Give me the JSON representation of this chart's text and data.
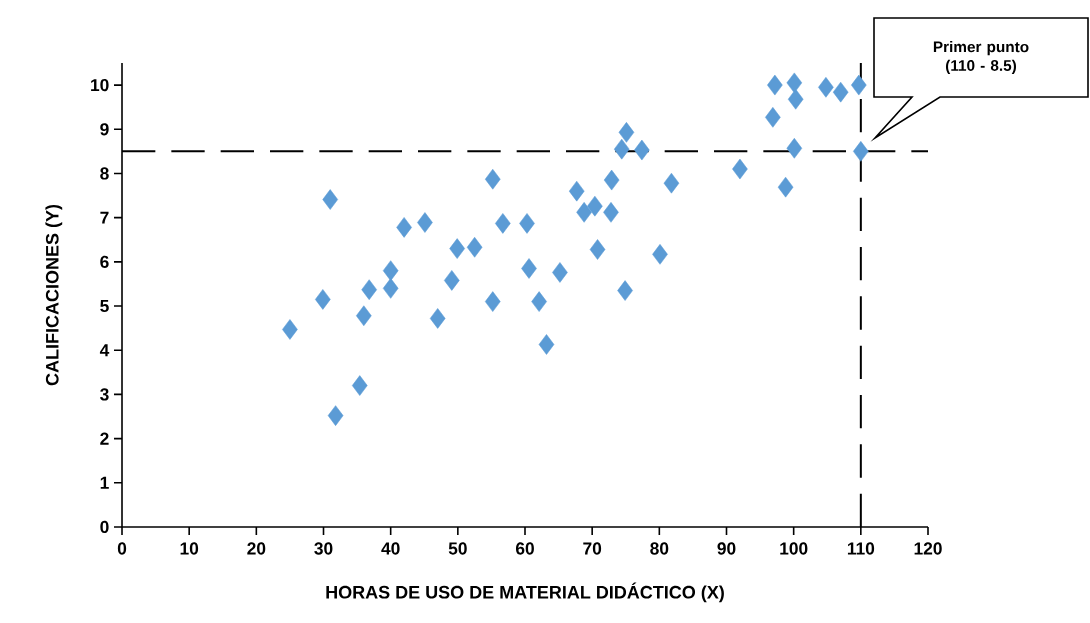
{
  "chart_data": {
    "type": "scatter",
    "xlabel": "HORAS DE USO DE MATERIAL DIDÁCTICO (X)",
    "ylabel": "CALIFICACIONES (Y)",
    "x": [
      25.0,
      29.9,
      31.0,
      31.8,
      35.4,
      36.0,
      36.8,
      40.0,
      40.0,
      42.0,
      45.1,
      47.0,
      49.1,
      49.9,
      52.5,
      55.2,
      55.2,
      56.7,
      60.3,
      60.6,
      62.1,
      63.2,
      65.2,
      67.7,
      68.8,
      70.4,
      70.8,
      72.8,
      72.9,
      74.4,
      75.1,
      74.9,
      77.4,
      80.1,
      81.8,
      92.0,
      96.9,
      97.2,
      98.8,
      100.1,
      100.3,
      100.1,
      104.8,
      107.0,
      109.7,
      110.0
    ],
    "series": [
      {
        "color": "#5b9bd5",
        "values": [
          4.47,
          5.15,
          7.41,
          2.52,
          3.2,
          4.78,
          5.37,
          5.8,
          5.4,
          6.78,
          6.89,
          4.72,
          5.58,
          6.3,
          6.33,
          7.87,
          5.1,
          6.87,
          6.87,
          5.85,
          5.1,
          4.13,
          5.76,
          7.6,
          7.12,
          7.26,
          6.28,
          7.12,
          7.85,
          8.55,
          8.93,
          5.35,
          8.53,
          6.17,
          7.78,
          8.1,
          9.27,
          10.0,
          7.69,
          10.05,
          9.68,
          8.57,
          9.95,
          9.84,
          10.0,
          8.5
        ]
      }
    ],
    "marker": "diamond",
    "grid": false,
    "xlim": [
      0,
      120
    ],
    "ylim": [
      0,
      10.5
    ],
    "xticks": [
      0,
      10,
      20,
      30,
      40,
      50,
      60,
      70,
      80,
      90,
      100,
      110,
      120
    ],
    "yticks": [
      0,
      1,
      2,
      3,
      4,
      5,
      6,
      7,
      8,
      9,
      10
    ],
    "ref_lines": [
      {
        "axis": "x",
        "value": 110,
        "color": "#000000",
        "line_style": "dashed"
      },
      {
        "axis": "y",
        "value": 8.5,
        "color": "#000000",
        "line_style": "dashed"
      }
    ],
    "annotations": [
      "Primer punto (110 - 8.5)"
    ]
  }
}
